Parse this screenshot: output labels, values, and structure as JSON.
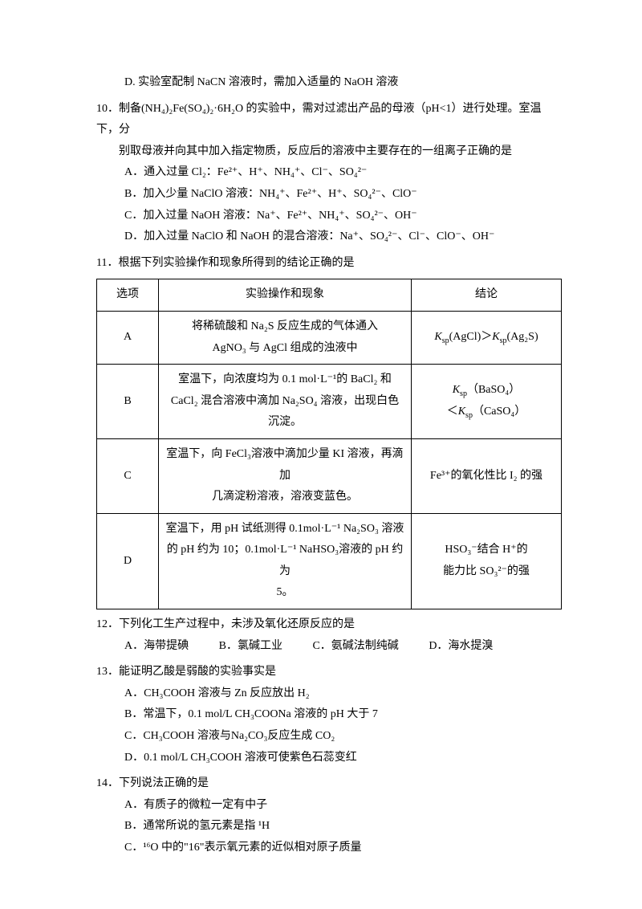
{
  "q9d": "D. 实验室配制 NaCN 溶液时，需加入适量的 NaOH 溶液",
  "q10": {
    "stem1": "10．制备(NH₄)₂Fe(SO₄)₂·6H₂O 的实验中，需对过滤出产品的母液（pH<1）进行处理。室温下，分",
    "stem2": "别取母液并向其中加入指定物质，反应后的溶液中主要存在的一组离子正确的是",
    "a": "A．通入过量 Cl₂：Fe²⁺、H⁺、NH₄⁺、Cl⁻、SO₄²⁻",
    "b": "B．加入少量 NaClO 溶液：NH₄⁺、Fe²⁺、H⁺、SO₄²⁻、ClO⁻",
    "c": "C．加入过量 NaOH 溶液：Na⁺、Fe²⁺、NH₄⁺、SO₄²⁻、OH⁻",
    "d": "D．加入过量 NaClO 和 NaOH 的混合溶液：Na⁺、SO₄²⁻、Cl⁻、ClO⁻、OH⁻"
  },
  "q11": {
    "stem": "11．根据下列实验操作和现象所得到的结论正确的是",
    "h1": "选项",
    "h2": "实验操作和现象",
    "h3": "结论",
    "a1": "A",
    "a2a": "将稀硫酸和 Na₂S 反应生成的气体通入",
    "a2b": "AgNO₃ 与 AgCl 组成的浊液中",
    "a3_html": "<i>K</i><sub>sp</sub>(AgCl)＞<i>K</i><sub>sp</sub>(Ag₂S)",
    "b1": "B",
    "b2a": "室温下，向浓度均为 0.1 mol·L⁻¹的 BaCl₂ 和",
    "b2b": "CaCl₂ 混合溶液中滴加 Na₂SO₄ 溶液，出现白色沉淀。",
    "b3a_html": "<i>K</i><sub>sp</sub>（BaSO₄）",
    "b3b_html": "＜<i>K</i><sub>sp</sub>（CaSO₄）",
    "c1": "C",
    "c2a": "室温下，向 FeCl₃溶液中滴加少量 KI 溶液，再滴加",
    "c2b": "几滴淀粉溶液，溶液变蓝色。",
    "c3": "Fe³⁺的氧化性比 I₂ 的强",
    "d1": "D",
    "d2a": "室温下，用 pH 试纸测得 0.1mol·L⁻¹ Na₂SO₃ 溶液",
    "d2b": "的 pH 约为 10；0.1mol·L⁻¹ NaHSO₃溶液的 pH 约为",
    "d2c": "5。",
    "d3a": "HSO₃⁻结合 H⁺的",
    "d3b": "能力比 SO₃²⁻的强"
  },
  "q12": {
    "stem": "12．下列化工生产过程中，未涉及氧化还原反应的是",
    "a": "A．海带提碘",
    "b": "B．氯碱工业",
    "c": "C．氨碱法制纯碱",
    "d": "D．海水提溴"
  },
  "q13": {
    "stem": "13．能证明乙酸是弱酸的实验事实是",
    "a": "A．CH₃COOH 溶液与 Zn 反应放出 H₂",
    "b": "B．常温下，0.1 mol/L CH₃COONa 溶液的 pH 大于 7",
    "c": "C．CH₃COOH 溶液与Na₂CO₃反应生成 CO₂",
    "d": "D．0.1 mol/L CH₃COOH 溶液可使紫色石蕊变红"
  },
  "q14": {
    "stem": "14．下列说法正确的是",
    "a": "A．有质子的微粒一定有中子",
    "b": "B．通常所说的氢元素是指 ¹H",
    "c": "C．¹⁶O 中的\"16\"表示氧元素的近似相对原子质量"
  }
}
